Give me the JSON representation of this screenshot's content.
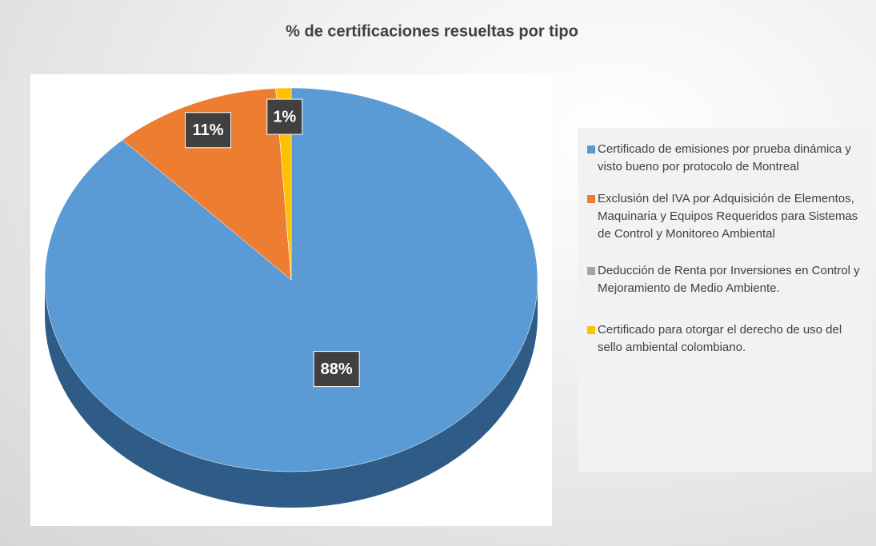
{
  "chart_data": {
    "type": "pie",
    "title": "% de certificaciones resueltas por tipo",
    "categories": [
      "Certificado de emisiones por prueba dinámica y visto bueno por protocolo de Montreal",
      "Exclusión del IVA por Adquisición de Elementos, Maquinaria y Equipos Requeridos para Sistemas de Control y Monitoreo Ambiental",
      "Deducción de Renta por Inversiones en Control y Mejoramiento de Medio Ambiente.",
      "Certificado para otorgar el derecho de uso del sello ambiental colombiano."
    ],
    "values": [
      88,
      11,
      0,
      1
    ],
    "value_labels": [
      "88%",
      "11%",
      null,
      "1%"
    ],
    "colors": [
      "#5b9bd5",
      "#ed7d31",
      "#a5a5a5",
      "#ffc000"
    ],
    "legend": "right"
  }
}
